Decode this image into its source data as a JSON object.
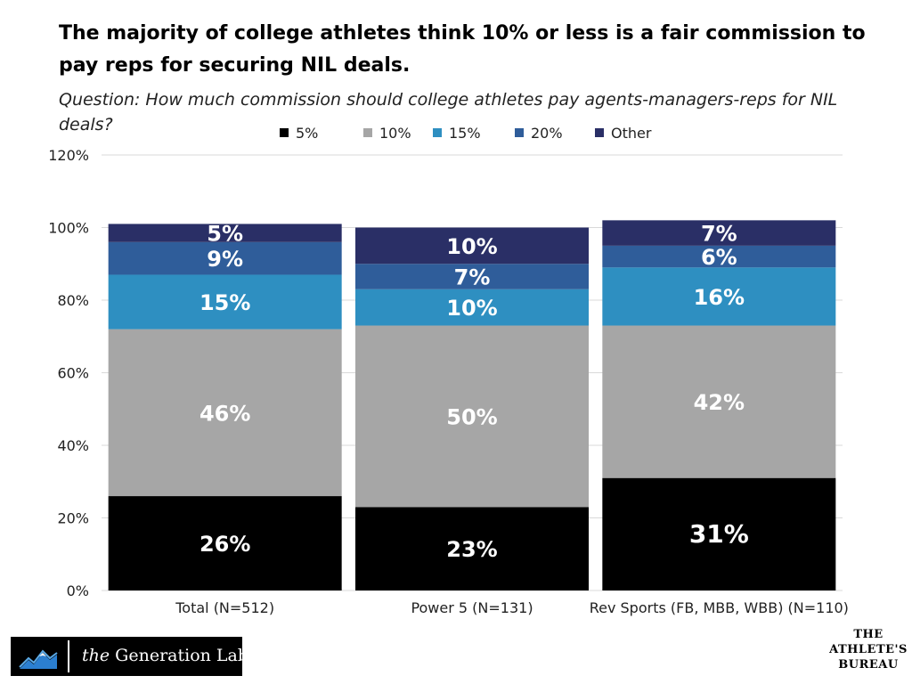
{
  "header": {
    "title": "The majority of college athletes  think 10% or less is a fair commission to pay reps for securing NIL deals.",
    "subtitle": "Question: How much commission should college athletes pay agents-managers-reps for NIL deals?"
  },
  "chart_data": {
    "type": "bar",
    "stacked": true,
    "categories": [
      "Total (N=512)",
      "Power 5 (N=131)",
      "Rev Sports (FB, MBB, WBB) (N=110)"
    ],
    "series": [
      {
        "name": "5%",
        "color": "#000000",
        "values": [
          26,
          23,
          31
        ],
        "labels": [
          "26%",
          "23%",
          "31%"
        ]
      },
      {
        "name": "10%",
        "color": "#a6a6a6",
        "values": [
          46,
          50,
          42
        ],
        "labels": [
          "46%",
          "50%",
          "42%"
        ]
      },
      {
        "name": "15%",
        "color": "#2e8fc1",
        "values": [
          15,
          10,
          16
        ],
        "labels": [
          "15%",
          "10%",
          "16%"
        ]
      },
      {
        "name": "20%",
        "color": "#2f5d9a",
        "values": [
          9,
          7,
          6
        ],
        "labels": [
          "9%",
          "7%",
          "6%"
        ]
      },
      {
        "name": "Other",
        "color": "#2a2f66",
        "values": [
          5,
          10,
          7
        ],
        "labels": [
          "5%",
          "10%",
          "7%"
        ]
      }
    ],
    "yticks": [
      "0%",
      "20%",
      "40%",
      "60%",
      "80%",
      "100%",
      "120%"
    ],
    "ylim": [
      0,
      120
    ],
    "grid": true,
    "legend_position": "top"
  },
  "footer": {
    "logo_the": "the",
    "logo_name": "Generation Lab",
    "logo_icon": "mountain-icon",
    "bureau_lines": [
      "THE",
      "ATHLETE'S",
      "BUREAU"
    ]
  }
}
